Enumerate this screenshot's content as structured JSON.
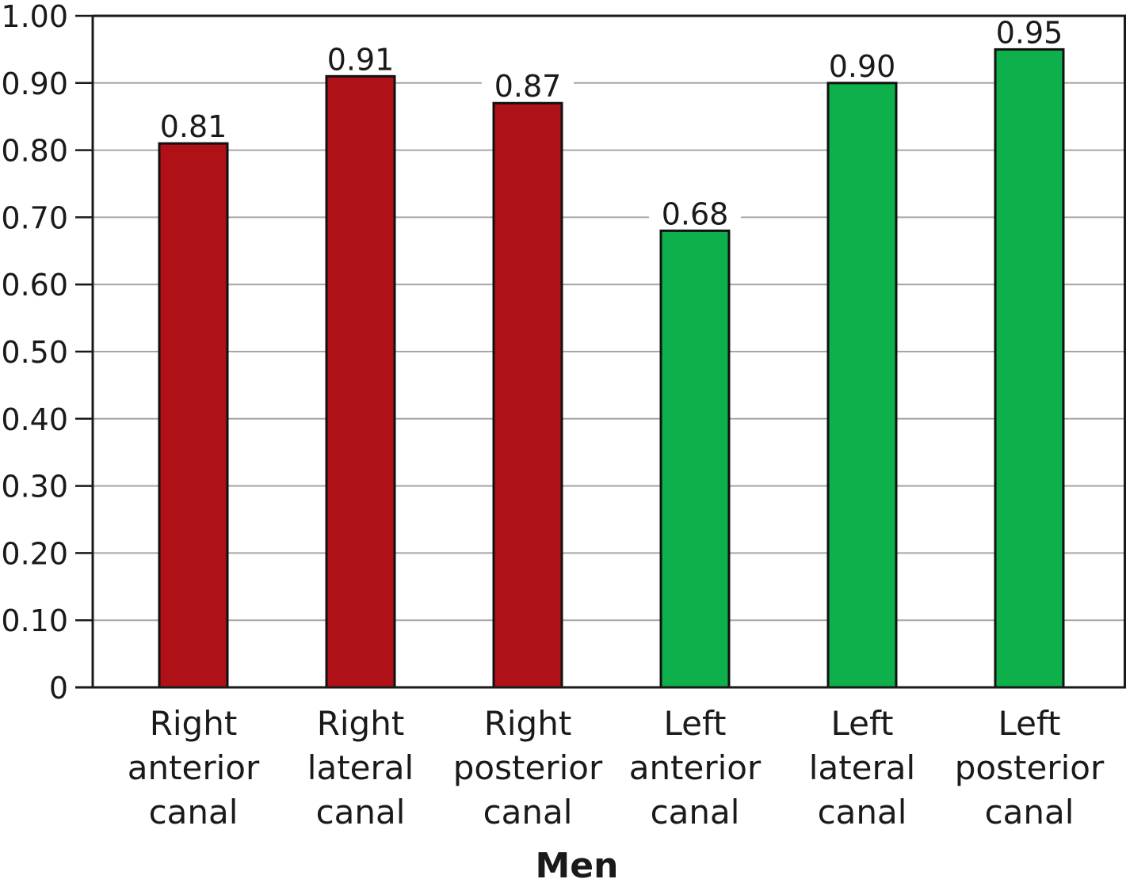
{
  "chart_data": {
    "type": "bar",
    "categories": [
      [
        "Right",
        "anterior",
        "canal"
      ],
      [
        "Right",
        "lateral",
        "canal"
      ],
      [
        "Right",
        "posterior",
        "canal"
      ],
      [
        "Left",
        "anterior",
        "canal"
      ],
      [
        "Left",
        "lateral",
        "canal"
      ],
      [
        "Left",
        "posterior",
        "canal"
      ]
    ],
    "values": [
      0.81,
      0.91,
      0.87,
      0.68,
      0.9,
      0.95
    ],
    "value_labels": [
      "0.81",
      "0.91",
      "0.87",
      "0.68",
      "0.90",
      "0.95"
    ],
    "bar_colors": [
      "#b01117",
      "#b01117",
      "#b01117",
      "#0db04b",
      "#0db04b",
      "#0db04b"
    ],
    "xlabel": "Men",
    "ylabel": "",
    "ylim": [
      0,
      1.0
    ],
    "yticks": [
      0,
      0.1,
      0.2,
      0.3,
      0.4,
      0.5,
      0.6,
      0.7,
      0.8,
      0.9,
      1.0
    ],
    "ytick_labels": [
      "0",
      "0.10",
      "0.20",
      "0.30",
      "0.40",
      "0.50",
      "0.60",
      "0.70",
      "0.80",
      "0.90",
      "1.00"
    ],
    "grid": true,
    "legend": "none"
  }
}
